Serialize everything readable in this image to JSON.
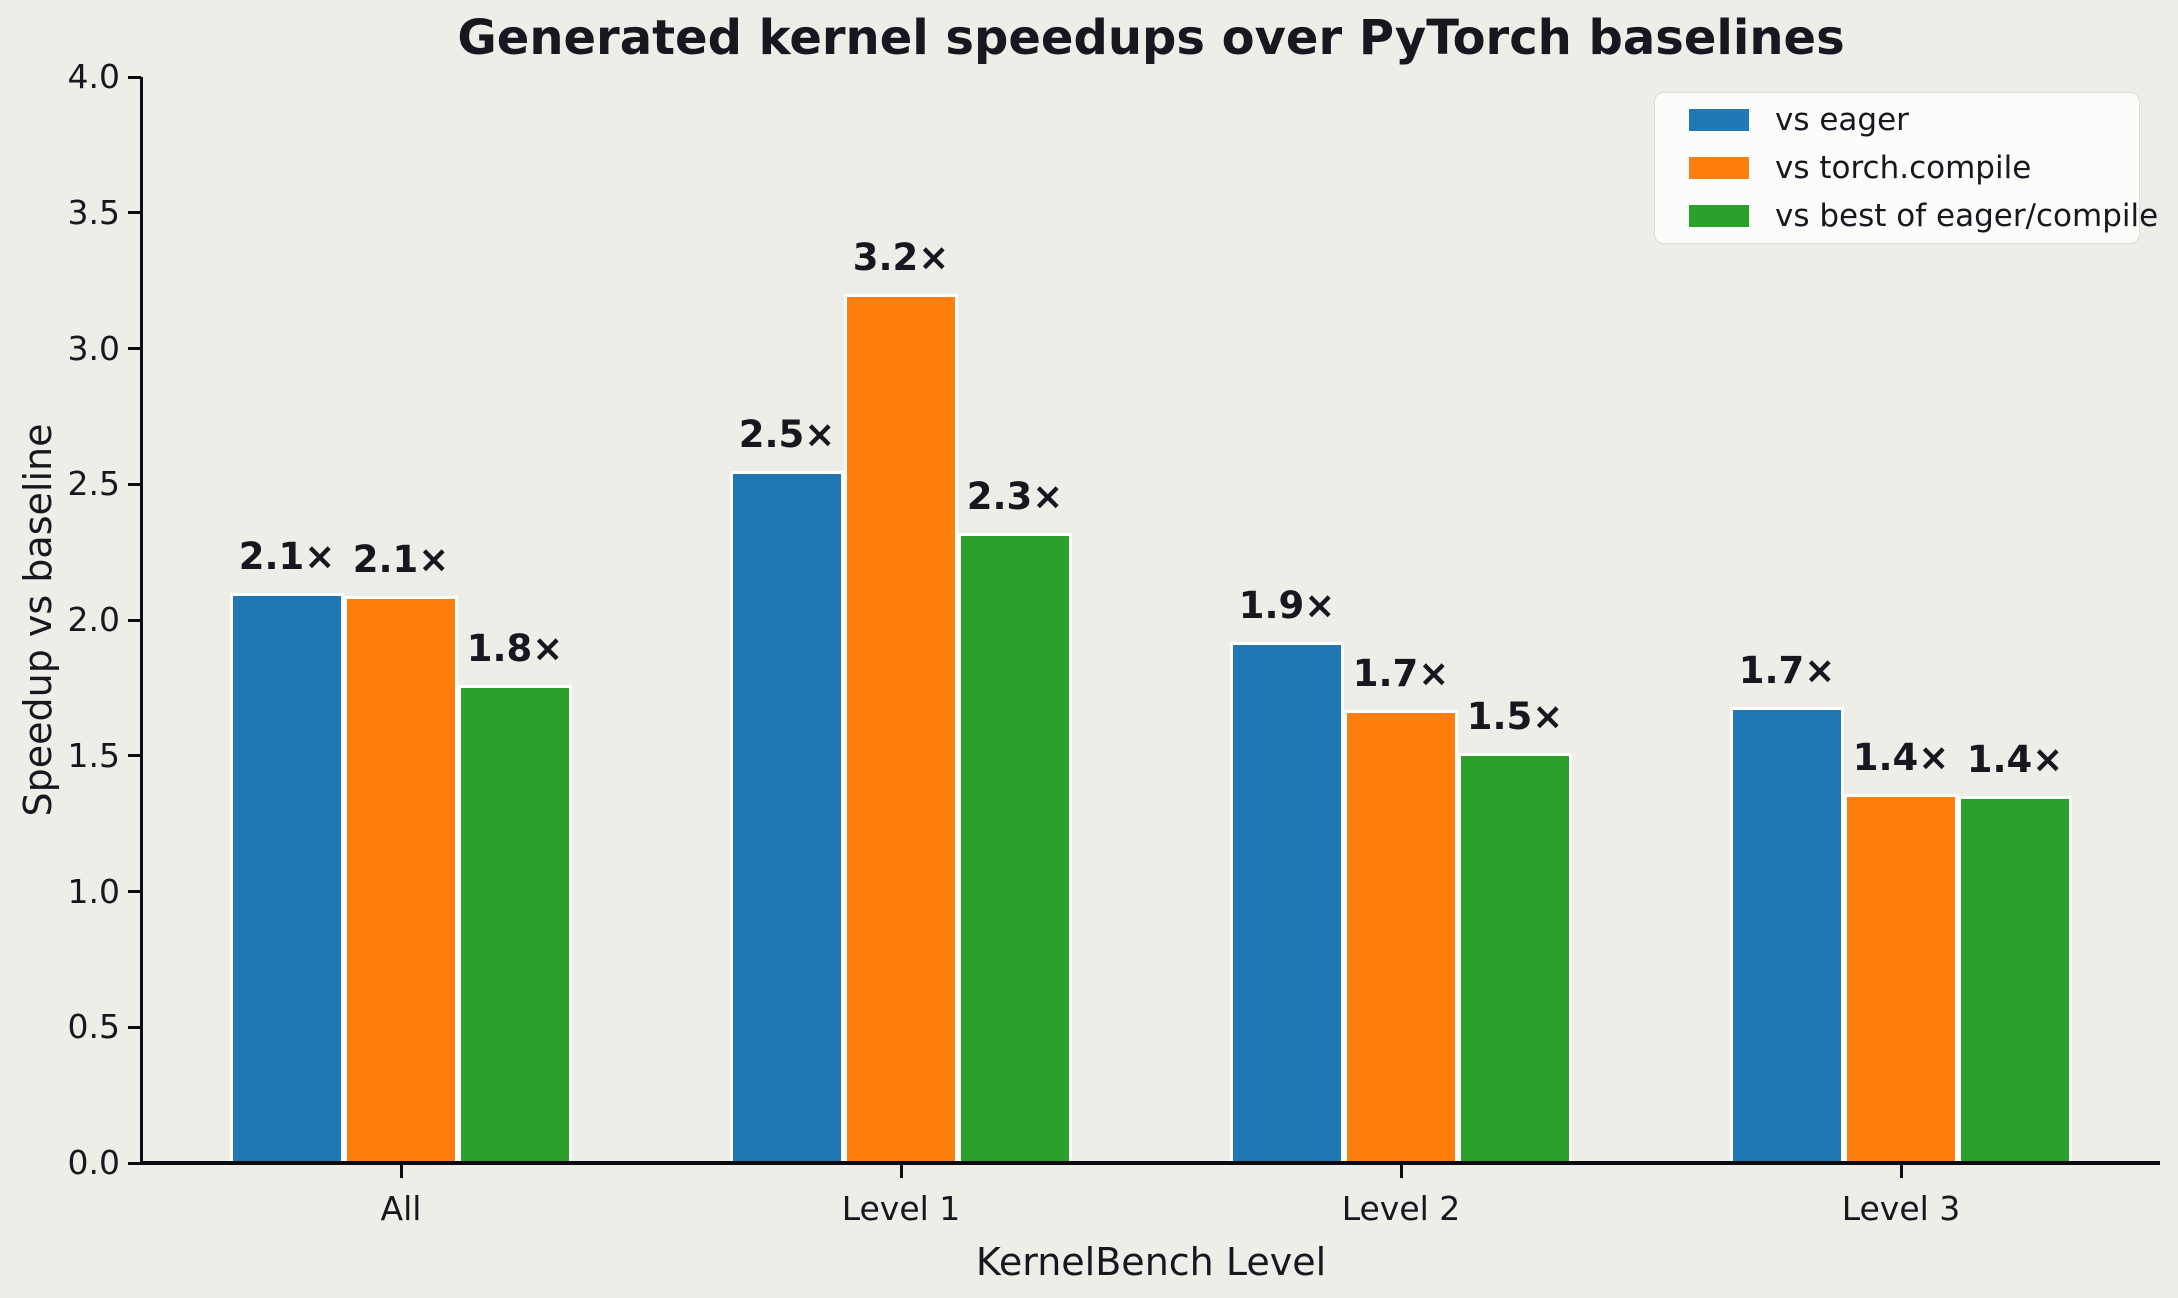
{
  "title": "Generated kernel speedups over PyTorch baselines",
  "chart_data": {
    "type": "bar",
    "title": "Generated kernel speedups over PyTorch baselines",
    "xlabel": "KernelBench Level",
    "ylabel": "Speedup vs baseline",
    "categories": [
      "All",
      "Level 1",
      "Level 2",
      "Level 3"
    ],
    "series": [
      {
        "name": "vs eager",
        "color": "#1f77b4",
        "values": [
          2.1,
          2.55,
          1.92,
          1.68
        ],
        "labels": [
          "2.1×",
          "2.5×",
          "1.9×",
          "1.7×"
        ]
      },
      {
        "name": "vs torch.compile",
        "color": "#ff7f0e",
        "values": [
          2.09,
          3.2,
          1.67,
          1.36
        ],
        "labels": [
          "2.1×",
          "3.2×",
          "1.7×",
          "1.4×"
        ]
      },
      {
        "name": "vs best of eager/compile",
        "color": "#2ca02c",
        "values": [
          1.76,
          2.32,
          1.51,
          1.35
        ],
        "labels": [
          "1.8×",
          "2.3×",
          "1.5×",
          "1.4×"
        ]
      }
    ],
    "y_ticks": [
      "0.0",
      "0.5",
      "1.0",
      "1.5",
      "2.0",
      "2.5",
      "3.0",
      "3.5",
      "4.0"
    ],
    "ylim": [
      0,
      4
    ],
    "grid": false,
    "legend_position": "upper right",
    "background_color": "#eeede8",
    "text_color": "#171720"
  }
}
